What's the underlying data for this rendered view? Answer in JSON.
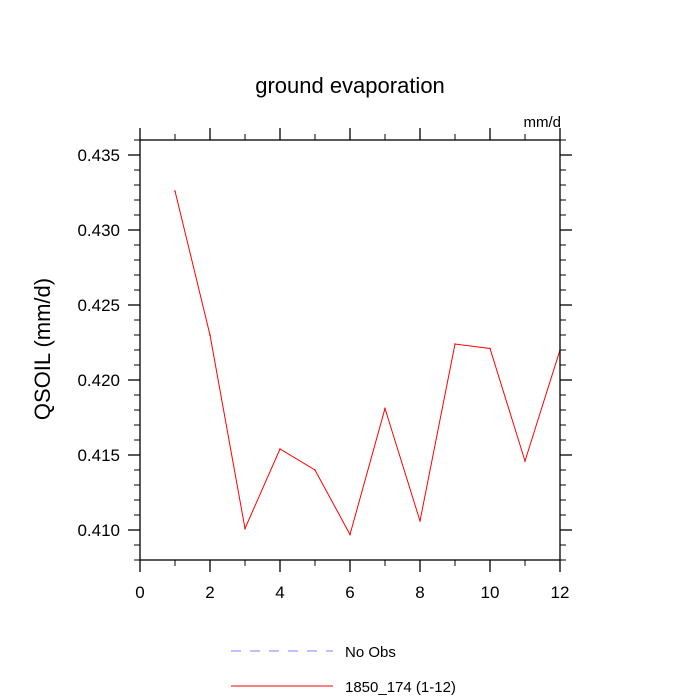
{
  "chart_data": {
    "type": "line",
    "title": "ground evaporation",
    "units_label": "mm/d",
    "xlabel": "",
    "ylabel": "QSOIL  (mm/d)",
    "xlim": [
      0,
      12
    ],
    "ylim": [
      0.408,
      0.436
    ],
    "x_ticks": [
      0,
      2,
      4,
      6,
      8,
      10,
      12
    ],
    "x_tick_labels": [
      "0",
      "2",
      "4",
      "6",
      "8",
      "10",
      "12"
    ],
    "y_ticks": [
      0.41,
      0.415,
      0.42,
      0.425,
      0.43,
      0.435
    ],
    "y_tick_labels": [
      "0.410",
      "0.415",
      "0.420",
      "0.425",
      "0.430",
      "0.435"
    ],
    "grid": false,
    "legend_position": "bottom",
    "series": [
      {
        "name": "No Obs",
        "color": "#8080ff",
        "style": "dashed",
        "x": [],
        "y": []
      },
      {
        "name": "1850_174 (1-12)",
        "color": "#ff0000",
        "style": "solid",
        "x": [
          1,
          2,
          3,
          4,
          5,
          6,
          7,
          8,
          9,
          10,
          11,
          12
        ],
        "y": [
          0.4326,
          0.423,
          0.4101,
          0.4154,
          0.414,
          0.4097,
          0.4181,
          0.4106,
          0.4224,
          0.4221,
          0.4146,
          0.422
        ]
      }
    ]
  }
}
